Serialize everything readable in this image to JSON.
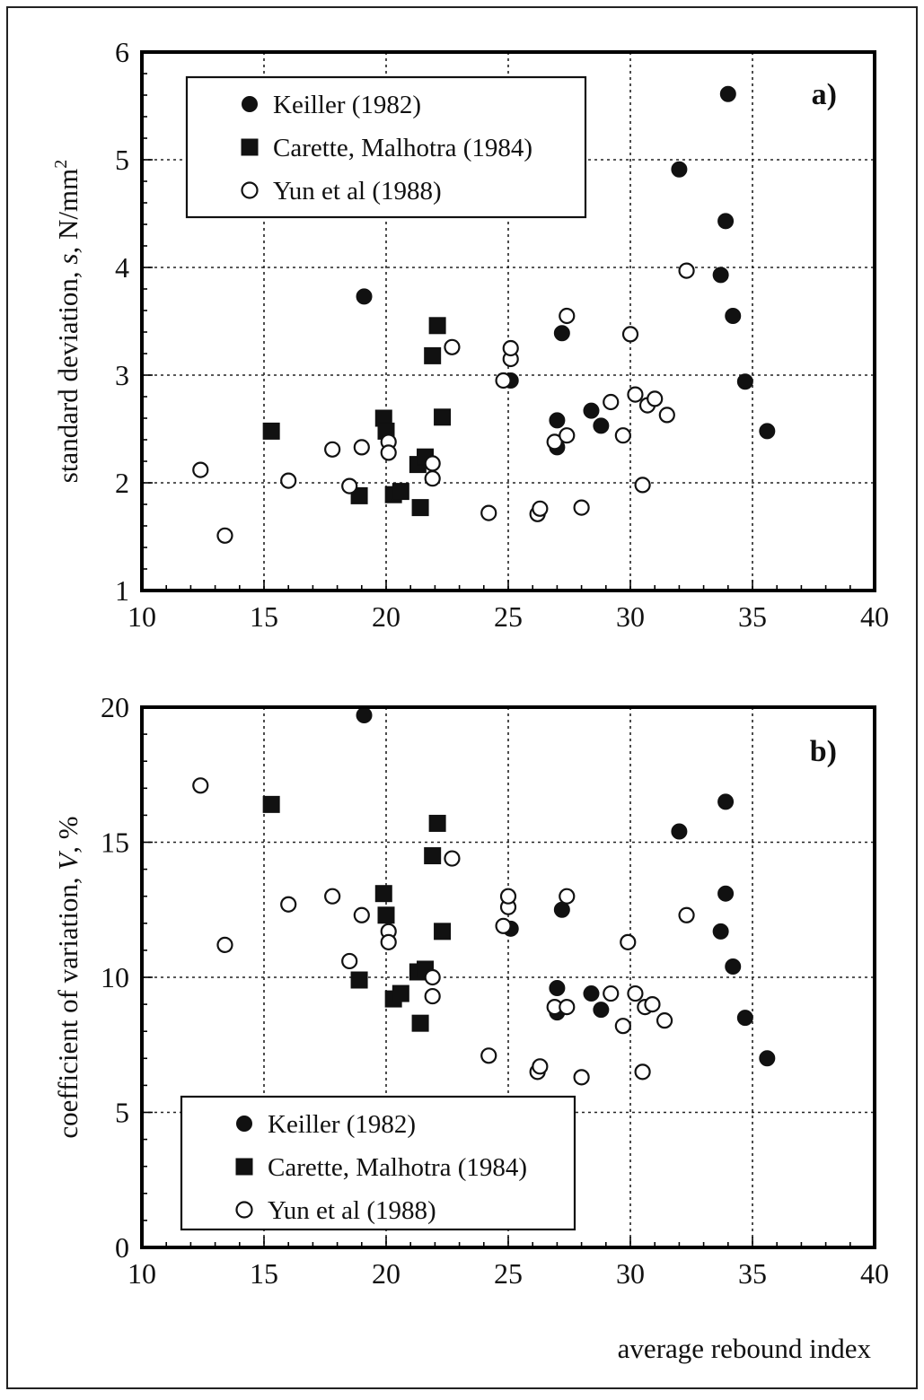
{
  "x_axis_label": "average rebound index",
  "chart_data": [
    {
      "type": "scatter",
      "panel_label": "a)",
      "ylabel_main": "standard deviation, ",
      "ylabel_var": "s",
      "ylabel_unit": ", N/mm",
      "ylabel_sup": "2",
      "xlim": [
        10,
        40
      ],
      "ylim": [
        1,
        6
      ],
      "xticks": [
        10,
        15,
        20,
        25,
        30,
        35,
        40
      ],
      "yticks": [
        1,
        2,
        3,
        4,
        5,
        6
      ],
      "grid": true,
      "legend_position": "top-left",
      "series": [
        {
          "name": "Keiller (1982)",
          "marker": "filled-circle",
          "points": [
            [
              19.1,
              3.73
            ],
            [
              25.1,
              2.95
            ],
            [
              27.0,
              2.58
            ],
            [
              27.0,
              2.33
            ],
            [
              27.2,
              3.39
            ],
            [
              28.4,
              2.67
            ],
            [
              28.8,
              2.53
            ],
            [
              32.0,
              4.91
            ],
            [
              33.7,
              3.93
            ],
            [
              33.9,
              4.43
            ],
            [
              34.0,
              5.61
            ],
            [
              34.2,
              3.55
            ],
            [
              34.7,
              2.94
            ],
            [
              35.6,
              2.48
            ]
          ]
        },
        {
          "name": "Carette, Malhotra (1984)",
          "marker": "filled-square",
          "points": [
            [
              15.3,
              2.48
            ],
            [
              18.9,
              1.88
            ],
            [
              19.9,
              2.6
            ],
            [
              20.0,
              2.48
            ],
            [
              20.3,
              1.89
            ],
            [
              20.6,
              1.92
            ],
            [
              21.3,
              2.17
            ],
            [
              21.4,
              1.77
            ],
            [
              21.6,
              2.24
            ],
            [
              21.9,
              3.18
            ],
            [
              22.1,
              3.46
            ],
            [
              22.3,
              2.61
            ]
          ]
        },
        {
          "name": "Yun et al (1988)",
          "marker": "open-circle",
          "points": [
            [
              12.4,
              2.12
            ],
            [
              13.4,
              1.51
            ],
            [
              16.0,
              2.02
            ],
            [
              17.8,
              2.31
            ],
            [
              18.5,
              1.97
            ],
            [
              19.0,
              2.33
            ],
            [
              20.1,
              2.38
            ],
            [
              20.1,
              2.28
            ],
            [
              21.9,
              2.18
            ],
            [
              21.9,
              2.04
            ],
            [
              22.7,
              3.26
            ],
            [
              24.2,
              1.72
            ],
            [
              24.8,
              2.95
            ],
            [
              25.1,
              3.15
            ],
            [
              25.1,
              3.25
            ],
            [
              26.2,
              1.71
            ],
            [
              26.3,
              1.76
            ],
            [
              26.9,
              2.38
            ],
            [
              27.4,
              2.44
            ],
            [
              27.4,
              3.55
            ],
            [
              28.0,
              1.77
            ],
            [
              29.2,
              2.75
            ],
            [
              29.7,
              2.44
            ],
            [
              30.0,
              3.38
            ],
            [
              30.2,
              2.82
            ],
            [
              30.5,
              1.98
            ],
            [
              30.7,
              2.72
            ],
            [
              31.0,
              2.78
            ],
            [
              31.5,
              2.63
            ],
            [
              32.3,
              3.97
            ]
          ]
        }
      ]
    },
    {
      "type": "scatter",
      "panel_label": "b)",
      "ylabel_main": "coefficient of variation, ",
      "ylabel_var": "V",
      "ylabel_unit": ", %",
      "ylabel_sup": "",
      "xlim": [
        10,
        40
      ],
      "ylim": [
        0,
        20
      ],
      "xticks": [
        10,
        15,
        20,
        25,
        30,
        35,
        40
      ],
      "yticks": [
        0,
        5,
        10,
        15,
        20
      ],
      "grid": true,
      "legend_position": "bottom-left",
      "series": [
        {
          "name": "Keiller (1982)",
          "marker": "filled-circle",
          "points": [
            [
              19.1,
              19.7
            ],
            [
              25.1,
              11.8
            ],
            [
              27.0,
              9.6
            ],
            [
              27.0,
              8.7
            ],
            [
              27.2,
              12.5
            ],
            [
              28.4,
              9.4
            ],
            [
              28.8,
              8.8
            ],
            [
              32.0,
              15.4
            ],
            [
              33.7,
              11.7
            ],
            [
              33.9,
              13.1
            ],
            [
              33.9,
              16.5
            ],
            [
              34.2,
              10.4
            ],
            [
              34.7,
              8.5
            ],
            [
              35.6,
              7.0
            ]
          ]
        },
        {
          "name": "Carette, Malhotra (1984)",
          "marker": "filled-square",
          "points": [
            [
              15.3,
              16.4
            ],
            [
              18.9,
              9.9
            ],
            [
              19.9,
              13.1
            ],
            [
              20.0,
              12.3
            ],
            [
              20.3,
              9.2
            ],
            [
              20.6,
              9.4
            ],
            [
              21.3,
              10.2
            ],
            [
              21.4,
              8.3
            ],
            [
              21.6,
              10.3
            ],
            [
              21.9,
              14.5
            ],
            [
              22.1,
              15.7
            ],
            [
              22.3,
              11.7
            ]
          ]
        },
        {
          "name": "Yun et al (1988)",
          "marker": "open-circle",
          "points": [
            [
              12.4,
              17.1
            ],
            [
              13.4,
              11.2
            ],
            [
              16.0,
              12.7
            ],
            [
              17.8,
              13.0
            ],
            [
              18.5,
              10.6
            ],
            [
              19.0,
              12.3
            ],
            [
              20.1,
              11.7
            ],
            [
              20.1,
              11.3
            ],
            [
              21.9,
              10.0
            ],
            [
              21.9,
              9.3
            ],
            [
              22.7,
              14.4
            ],
            [
              24.2,
              7.1
            ],
            [
              24.8,
              11.9
            ],
            [
              25.0,
              12.6
            ],
            [
              25.0,
              13.0
            ],
            [
              26.2,
              6.5
            ],
            [
              26.3,
              6.7
            ],
            [
              26.9,
              8.9
            ],
            [
              27.4,
              8.9
            ],
            [
              27.4,
              13.0
            ],
            [
              28.0,
              6.3
            ],
            [
              29.2,
              9.4
            ],
            [
              29.7,
              8.2
            ],
            [
              29.9,
              11.3
            ],
            [
              30.2,
              9.4
            ],
            [
              30.5,
              6.5
            ],
            [
              30.6,
              8.9
            ],
            [
              30.9,
              9.0
            ],
            [
              31.4,
              8.4
            ],
            [
              32.3,
              12.3
            ]
          ]
        }
      ]
    }
  ]
}
